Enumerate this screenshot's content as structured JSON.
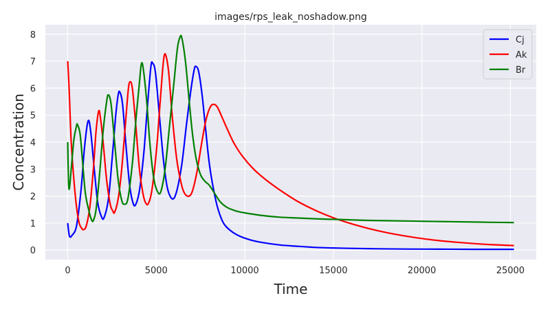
{
  "chart_data": {
    "type": "line",
    "title": "images/rps_leak_noshadow.png",
    "xlabel": "Time",
    "ylabel": "Concentration",
    "xlim": [
      -1260,
      26460
    ],
    "ylim": [
      -0.35,
      8.35
    ],
    "xticks": [
      0,
      5000,
      10000,
      15000,
      20000,
      25000
    ],
    "yticks": [
      0,
      1,
      2,
      3,
      4,
      5,
      6,
      7,
      8
    ],
    "grid": true,
    "background": "#eaeaf2",
    "legend_position": "top-right",
    "series": [
      {
        "name": "Cj",
        "color": "#0000ff",
        "points": [
          [
            0,
            1.0
          ],
          [
            100,
            0.52
          ],
          [
            250,
            0.55
          ],
          [
            500,
            0.9
          ],
          [
            750,
            2.2
          ],
          [
            950,
            3.8
          ],
          [
            1150,
            4.78
          ],
          [
            1300,
            4.4
          ],
          [
            1500,
            3.0
          ],
          [
            1700,
            1.75
          ],
          [
            1900,
            1.25
          ],
          [
            2050,
            1.2
          ],
          [
            2300,
            1.9
          ],
          [
            2500,
            3.3
          ],
          [
            2700,
            4.9
          ],
          [
            2850,
            5.75
          ],
          [
            2950,
            5.85
          ],
          [
            3100,
            5.4
          ],
          [
            3300,
            3.8
          ],
          [
            3500,
            2.4
          ],
          [
            3700,
            1.72
          ],
          [
            3850,
            1.7
          ],
          [
            4050,
            2.2
          ],
          [
            4300,
            3.6
          ],
          [
            4500,
            5.3
          ],
          [
            4700,
            6.8
          ],
          [
            4800,
            6.92
          ],
          [
            4950,
            6.6
          ],
          [
            5150,
            5.2
          ],
          [
            5400,
            3.4
          ],
          [
            5600,
            2.4
          ],
          [
            5800,
            1.98
          ],
          [
            6000,
            1.92
          ],
          [
            6200,
            2.3
          ],
          [
            6450,
            3.2
          ],
          [
            6700,
            4.6
          ],
          [
            6950,
            5.9
          ],
          [
            7150,
            6.7
          ],
          [
            7250,
            6.8
          ],
          [
            7400,
            6.6
          ],
          [
            7600,
            5.7
          ],
          [
            7800,
            4.4
          ],
          [
            8000,
            3.2
          ],
          [
            8250,
            2.2
          ],
          [
            8500,
            1.5
          ],
          [
            8800,
            1.0
          ],
          [
            9200,
            0.72
          ],
          [
            9700,
            0.52
          ],
          [
            10300,
            0.38
          ],
          [
            11000,
            0.28
          ],
          [
            12000,
            0.19
          ],
          [
            13000,
            0.14
          ],
          [
            14000,
            0.1
          ],
          [
            15000,
            0.08
          ],
          [
            16000,
            0.065
          ],
          [
            17500,
            0.05
          ],
          [
            19000,
            0.04
          ],
          [
            21000,
            0.035
          ],
          [
            23000,
            0.03
          ],
          [
            25200,
            0.03
          ]
        ]
      },
      {
        "name": "Ak",
        "color": "#ff0000",
        "points": [
          [
            0,
            7.0
          ],
          [
            80,
            6.0
          ],
          [
            200,
            4.0
          ],
          [
            350,
            2.6
          ],
          [
            500,
            1.6
          ],
          [
            650,
            1.0
          ],
          [
            800,
            0.8
          ],
          [
            900,
            0.76
          ],
          [
            1050,
            0.9
          ],
          [
            1250,
            1.6
          ],
          [
            1450,
            3.0
          ],
          [
            1600,
            4.4
          ],
          [
            1750,
            5.15
          ],
          [
            1850,
            4.9
          ],
          [
            2000,
            4.0
          ],
          [
            2200,
            2.6
          ],
          [
            2400,
            1.7
          ],
          [
            2550,
            1.45
          ],
          [
            2650,
            1.4
          ],
          [
            2850,
            1.9
          ],
          [
            3050,
            3.0
          ],
          [
            3250,
            4.6
          ],
          [
            3400,
            5.8
          ],
          [
            3500,
            6.22
          ],
          [
            3650,
            6.0
          ],
          [
            3850,
            4.6
          ],
          [
            4050,
            3.0
          ],
          [
            4250,
            2.1
          ],
          [
            4400,
            1.75
          ],
          [
            4550,
            1.72
          ],
          [
            4750,
            2.2
          ],
          [
            5000,
            3.6
          ],
          [
            5200,
            5.3
          ],
          [
            5350,
            6.6
          ],
          [
            5450,
            7.2
          ],
          [
            5550,
            7.2
          ],
          [
            5700,
            6.6
          ],
          [
            5900,
            5.0
          ],
          [
            6150,
            3.4
          ],
          [
            6400,
            2.5
          ],
          [
            6600,
            2.1
          ],
          [
            6850,
            2.0
          ],
          [
            7050,
            2.2
          ],
          [
            7300,
            2.9
          ],
          [
            7550,
            3.9
          ],
          [
            7800,
            4.8
          ],
          [
            8050,
            5.3
          ],
          [
            8250,
            5.4
          ],
          [
            8450,
            5.3
          ],
          [
            8700,
            4.95
          ],
          [
            9000,
            4.5
          ],
          [
            9400,
            3.95
          ],
          [
            9900,
            3.45
          ],
          [
            10500,
            3.0
          ],
          [
            11200,
            2.6
          ],
          [
            12000,
            2.22
          ],
          [
            13000,
            1.8
          ],
          [
            14000,
            1.47
          ],
          [
            15000,
            1.2
          ],
          [
            16000,
            0.98
          ],
          [
            17000,
            0.8
          ],
          [
            18000,
            0.65
          ],
          [
            19000,
            0.53
          ],
          [
            20000,
            0.43
          ],
          [
            21000,
            0.35
          ],
          [
            22000,
            0.29
          ],
          [
            23000,
            0.24
          ],
          [
            24000,
            0.2
          ],
          [
            25200,
            0.17
          ]
        ]
      },
      {
        "name": "Br",
        "color": "#008000",
        "points": [
          [
            0,
            4.0
          ],
          [
            50,
            2.5
          ],
          [
            100,
            2.3
          ],
          [
            200,
            3.0
          ],
          [
            350,
            4.1
          ],
          [
            500,
            4.6
          ],
          [
            550,
            4.65
          ],
          [
            700,
            4.3
          ],
          [
            850,
            3.2
          ],
          [
            1000,
            2.1
          ],
          [
            1200,
            1.45
          ],
          [
            1350,
            1.12
          ],
          [
            1450,
            1.1
          ],
          [
            1600,
            1.5
          ],
          [
            1800,
            2.8
          ],
          [
            2000,
            4.4
          ],
          [
            2200,
            5.5
          ],
          [
            2300,
            5.75
          ],
          [
            2450,
            5.4
          ],
          [
            2650,
            4.0
          ],
          [
            2850,
            2.6
          ],
          [
            3050,
            1.85
          ],
          [
            3200,
            1.7
          ],
          [
            3400,
            1.9
          ],
          [
            3650,
            3.2
          ],
          [
            3850,
            4.8
          ],
          [
            4050,
            6.2
          ],
          [
            4150,
            6.85
          ],
          [
            4250,
            6.8
          ],
          [
            4450,
            5.6
          ],
          [
            4650,
            3.9
          ],
          [
            4850,
            2.7
          ],
          [
            5050,
            2.2
          ],
          [
            5250,
            2.15
          ],
          [
            5500,
            3.0
          ],
          [
            5750,
            4.6
          ],
          [
            6000,
            6.2
          ],
          [
            6200,
            7.5
          ],
          [
            6350,
            7.9
          ],
          [
            6450,
            7.85
          ],
          [
            6650,
            7.0
          ],
          [
            6850,
            5.6
          ],
          [
            7050,
            4.3
          ],
          [
            7250,
            3.4
          ],
          [
            7500,
            2.8
          ],
          [
            7750,
            2.55
          ],
          [
            8000,
            2.4
          ],
          [
            8300,
            2.1
          ],
          [
            8600,
            1.8
          ],
          [
            9000,
            1.58
          ],
          [
            9500,
            1.45
          ],
          [
            10000,
            1.38
          ],
          [
            11000,
            1.28
          ],
          [
            12000,
            1.22
          ],
          [
            13000,
            1.19
          ],
          [
            14000,
            1.16
          ],
          [
            15000,
            1.14
          ],
          [
            16000,
            1.12
          ],
          [
            17000,
            1.1
          ],
          [
            18000,
            1.09
          ],
          [
            19000,
            1.08
          ],
          [
            20000,
            1.07
          ],
          [
            21000,
            1.06
          ],
          [
            22000,
            1.05
          ],
          [
            23000,
            1.04
          ],
          [
            24000,
            1.03
          ],
          [
            25200,
            1.02
          ]
        ]
      }
    ]
  }
}
